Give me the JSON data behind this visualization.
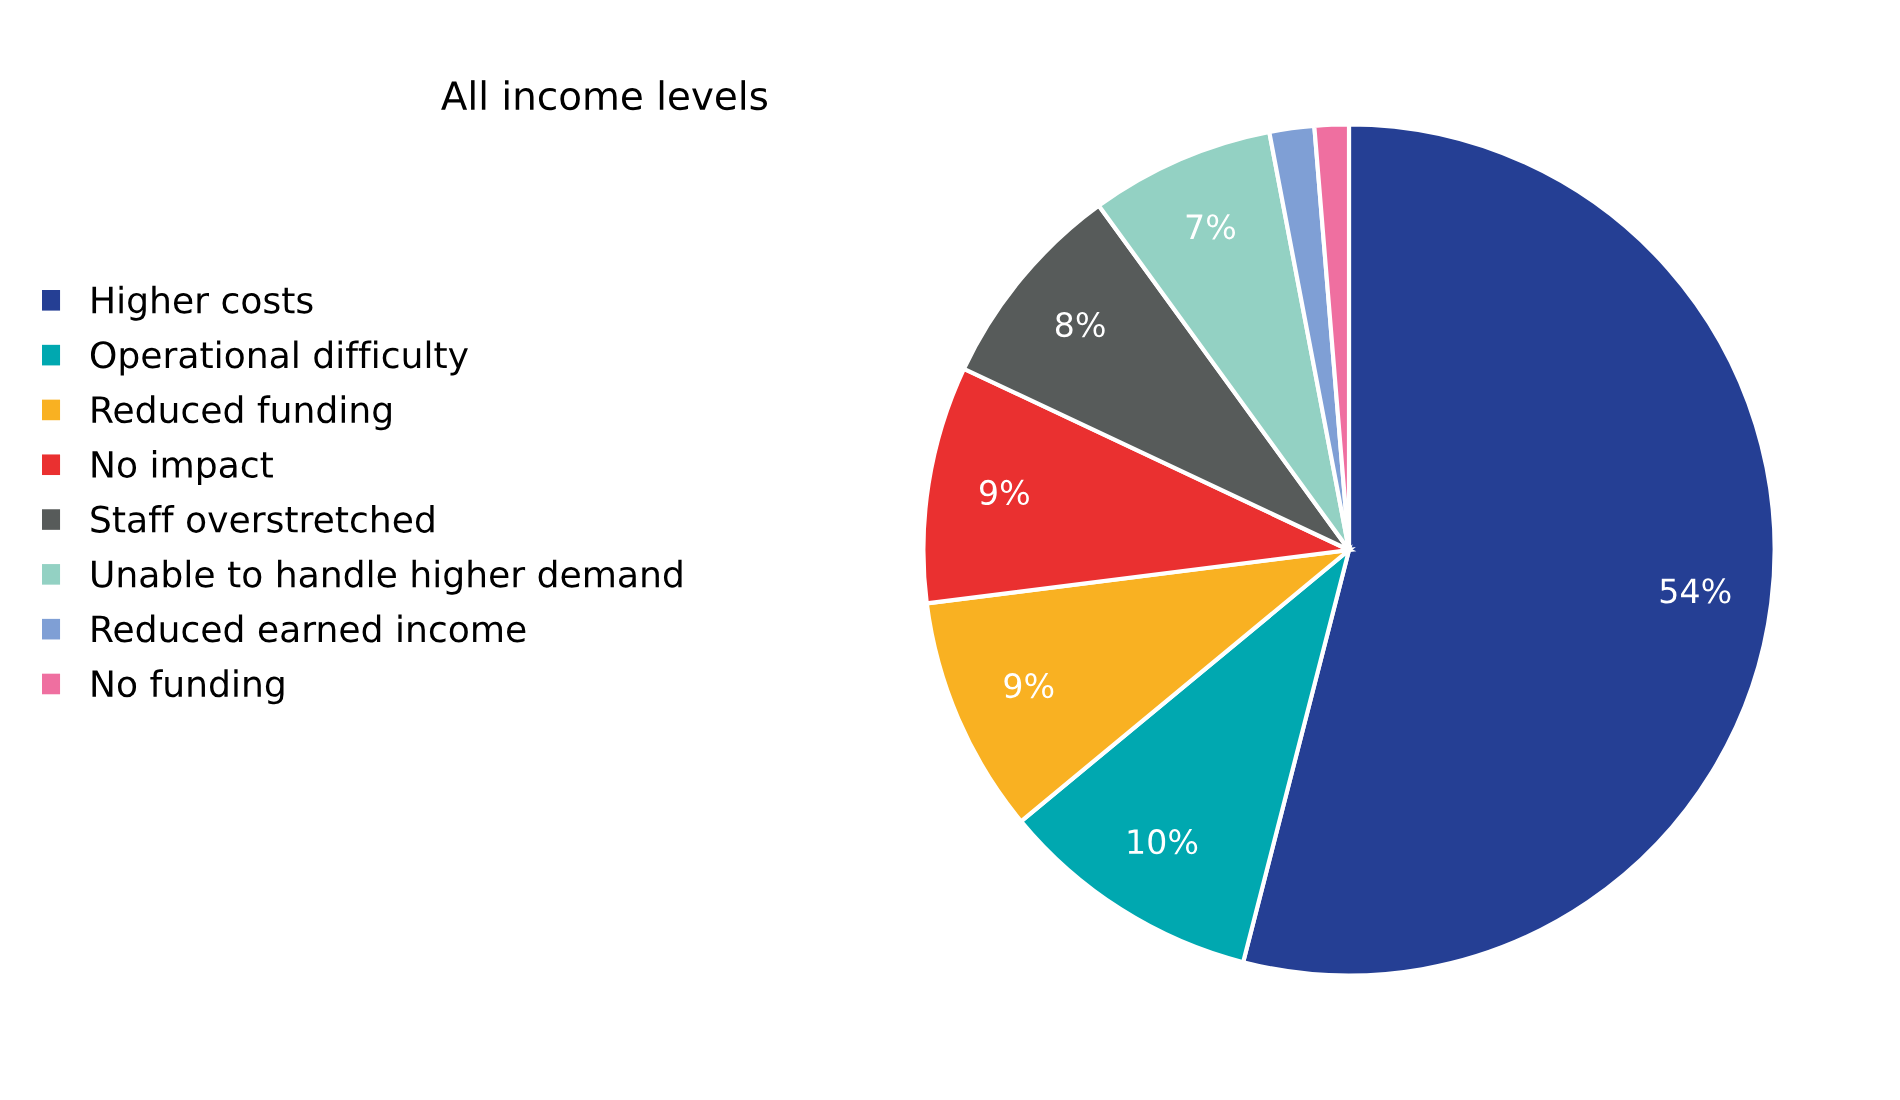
{
  "chart_data": {
    "type": "pie",
    "title": "All income levels",
    "categories": [
      "Higher costs",
      "Operational difficulty",
      "Reduced funding",
      "No impact",
      "Staff overstretched",
      "Unable to handle higher demand",
      "Reduced earned income",
      "No funding"
    ],
    "values": [
      54,
      10,
      9,
      9,
      8,
      7,
      1.7,
      1.3
    ],
    "colors": [
      "#253f94",
      "#00a8b0",
      "#f9b122",
      "#ea3030",
      "#575b5a",
      "#93d1c3",
      "#7f9fd5",
      "#ef6fa0"
    ],
    "value_labels": [
      "54%",
      "10%",
      "9%",
      "9%",
      "8%",
      "7%",
      null,
      null
    ],
    "legend": "left"
  }
}
